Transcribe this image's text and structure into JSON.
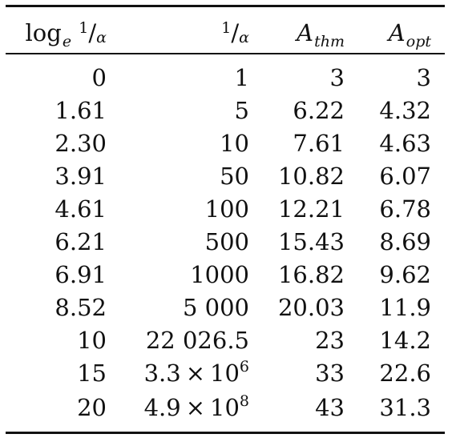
{
  "headers": {
    "col1_log": "log",
    "col1_log_sub": "e",
    "frac_num": "1",
    "frac_slash": "/",
    "frac_den": "α",
    "col3_base": "A",
    "col3_sub": "thm",
    "col4_base": "A",
    "col4_sub": "opt"
  },
  "rows": [
    {
      "log": "0",
      "inv": "1",
      "thm": "3",
      "opt": "3"
    },
    {
      "log": "1.61",
      "inv": "5",
      "thm": "6.22",
      "opt": "4.32"
    },
    {
      "log": "2.30",
      "inv": "10",
      "thm": "7.61",
      "opt": "4.63"
    },
    {
      "log": "3.91",
      "inv": "50",
      "thm": "10.82",
      "opt": "6.07"
    },
    {
      "log": "4.61",
      "inv": "100",
      "thm": "12.21",
      "opt": "6.78"
    },
    {
      "log": "6.21",
      "inv": "500",
      "thm": "15.43",
      "opt": "8.69"
    },
    {
      "log": "6.91",
      "inv": "1000",
      "thm": "16.82",
      "opt": "9.62"
    },
    {
      "log": "8.52",
      "inv": "5 000",
      "thm": "20.03",
      "opt": "11.9"
    },
    {
      "log": "10",
      "inv": "22 026.5",
      "thm": "23",
      "opt": "14.2"
    },
    {
      "log": "15",
      "inv_mant": "3.3",
      "inv_times": "×",
      "inv_base": "10",
      "inv_exp": "6",
      "thm": "33",
      "opt": "22.6"
    },
    {
      "log": "20",
      "inv_mant": "4.9",
      "inv_times": "×",
      "inv_base": "10",
      "inv_exp": "8",
      "thm": "43",
      "opt": "31.3"
    }
  ]
}
